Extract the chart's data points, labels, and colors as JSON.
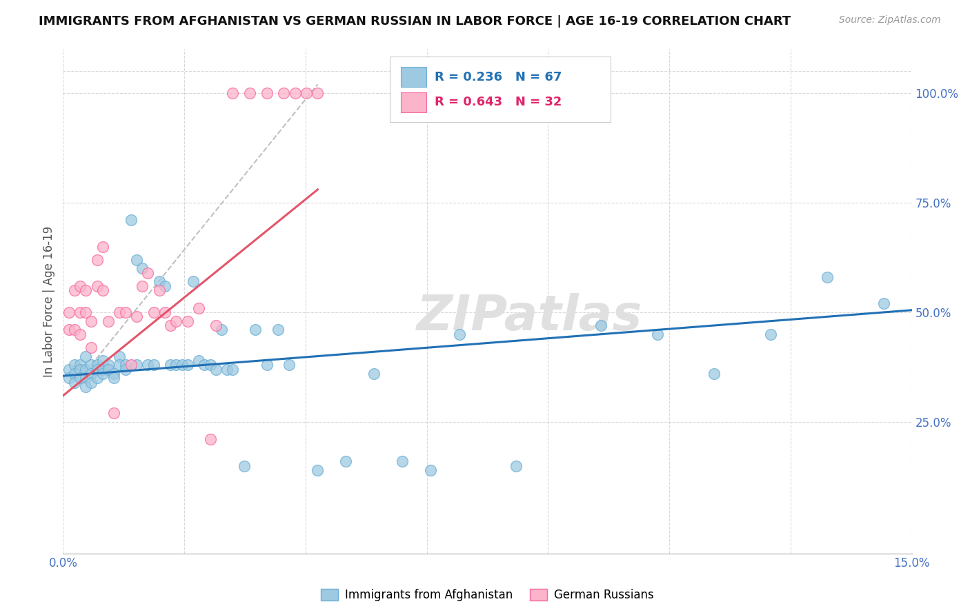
{
  "title": "IMMIGRANTS FROM AFGHANISTAN VS GERMAN RUSSIAN IN LABOR FORCE | AGE 16-19 CORRELATION CHART",
  "source": "Source: ZipAtlas.com",
  "ylabel": "In Labor Force | Age 16-19",
  "xlim": [
    0.0,
    0.15
  ],
  "ylim": [
    -0.05,
    1.1
  ],
  "blue_color": "#9ecae1",
  "blue_edge_color": "#6baed6",
  "pink_color": "#fbb4c9",
  "pink_edge_color": "#f768a1",
  "blue_line_color": "#2171b5",
  "pink_line_color": "#e3556a",
  "dashed_line_color": "#c0c0c0",
  "grid_color": "#d8d8d8",
  "background_color": "#ffffff",
  "tick_color": "#4472c4",
  "ylabel_color": "#555555",
  "watermark": "ZIPatlas",
  "watermark_color": "#e0e0e0",
  "blue_scatter_x": [
    0.001,
    0.001,
    0.002,
    0.002,
    0.002,
    0.003,
    0.003,
    0.003,
    0.004,
    0.004,
    0.004,
    0.004,
    0.005,
    0.005,
    0.005,
    0.006,
    0.006,
    0.006,
    0.007,
    0.007,
    0.007,
    0.008,
    0.008,
    0.009,
    0.009,
    0.01,
    0.01,
    0.011,
    0.011,
    0.012,
    0.013,
    0.013,
    0.014,
    0.015,
    0.016,
    0.017,
    0.018,
    0.019,
    0.02,
    0.021,
    0.022,
    0.023,
    0.024,
    0.025,
    0.026,
    0.027,
    0.028,
    0.029,
    0.03,
    0.032,
    0.034,
    0.036,
    0.038,
    0.04,
    0.045,
    0.05,
    0.055,
    0.06,
    0.065,
    0.07,
    0.08,
    0.095,
    0.105,
    0.115,
    0.125,
    0.135,
    0.145
  ],
  "blue_scatter_y": [
    0.37,
    0.35,
    0.38,
    0.36,
    0.34,
    0.38,
    0.37,
    0.35,
    0.4,
    0.37,
    0.35,
    0.33,
    0.38,
    0.36,
    0.34,
    0.38,
    0.37,
    0.35,
    0.39,
    0.37,
    0.36,
    0.38,
    0.37,
    0.36,
    0.35,
    0.4,
    0.38,
    0.38,
    0.37,
    0.71,
    0.62,
    0.38,
    0.6,
    0.38,
    0.38,
    0.57,
    0.56,
    0.38,
    0.38,
    0.38,
    0.38,
    0.57,
    0.39,
    0.38,
    0.38,
    0.37,
    0.46,
    0.37,
    0.37,
    0.15,
    0.46,
    0.38,
    0.46,
    0.38,
    0.14,
    0.16,
    0.36,
    0.16,
    0.14,
    0.45,
    0.15,
    0.47,
    0.45,
    0.36,
    0.45,
    0.58,
    0.52
  ],
  "pink_scatter_x": [
    0.001,
    0.001,
    0.002,
    0.002,
    0.003,
    0.003,
    0.003,
    0.004,
    0.004,
    0.005,
    0.005,
    0.006,
    0.006,
    0.007,
    0.007,
    0.008,
    0.009,
    0.01,
    0.011,
    0.012,
    0.013,
    0.014,
    0.015,
    0.016,
    0.017,
    0.018,
    0.019,
    0.02,
    0.022,
    0.024,
    0.026,
    0.027
  ],
  "pink_scatter_y": [
    0.5,
    0.46,
    0.55,
    0.46,
    0.56,
    0.5,
    0.45,
    0.55,
    0.5,
    0.48,
    0.42,
    0.62,
    0.56,
    0.55,
    0.65,
    0.48,
    0.27,
    0.5,
    0.5,
    0.38,
    0.49,
    0.56,
    0.59,
    0.5,
    0.55,
    0.5,
    0.47,
    0.48,
    0.48,
    0.51,
    0.21,
    0.47
  ],
  "pink_top_x": [
    0.03,
    0.033,
    0.036,
    0.039,
    0.041,
    0.043,
    0.045
  ],
  "pink_top_y": [
    1.0,
    1.0,
    1.0,
    1.0,
    1.0,
    1.0,
    1.0
  ],
  "blue_trendline_x": [
    0.0,
    0.15
  ],
  "blue_trendline_y": [
    0.355,
    0.505
  ],
  "pink_trendline_x": [
    0.0,
    0.045
  ],
  "pink_trendline_y": [
    0.31,
    0.78
  ],
  "dashed_line_x": [
    0.005,
    0.045
  ],
  "dashed_line_y": [
    0.38,
    1.02
  ]
}
